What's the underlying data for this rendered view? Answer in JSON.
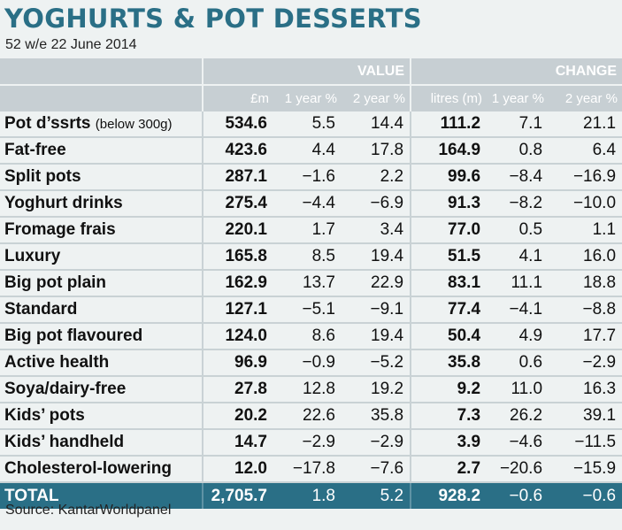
{
  "title": "YOGHURTS & POT DESSERTS",
  "subtitle": "52 w/e 22 June 2014",
  "source": "Source: KantarWorldpanel",
  "colors": {
    "accent": "#2a6f86",
    "header": "#c7cfd3",
    "background": "#eef2f2"
  },
  "chart_data": {
    "type": "table",
    "group_headers": [
      "VALUE",
      "CHANGE"
    ],
    "columns": [
      "£m",
      "1 year %",
      "2 year %",
      "litres (m)",
      "1 year %",
      "2 year %"
    ],
    "rows": [
      {
        "label": "Pot d’ssrts",
        "note": "(below 300g)",
        "values": [
          "534.6",
          "5.5",
          "14.4",
          "111.2",
          "7.1",
          "21.1"
        ]
      },
      {
        "label": "Fat-free",
        "note": "",
        "values": [
          "423.6",
          "4.4",
          "17.8",
          "164.9",
          "0.8",
          "6.4"
        ]
      },
      {
        "label": "Split pots",
        "note": "",
        "values": [
          "287.1",
          "−1.6",
          "2.2",
          "99.6",
          "−8.4",
          "−16.9"
        ]
      },
      {
        "label": "Yoghurt drinks",
        "note": "",
        "values": [
          "275.4",
          "−4.4",
          "−6.9",
          "91.3",
          "−8.2",
          "−10.0"
        ]
      },
      {
        "label": "Fromage frais",
        "note": "",
        "values": [
          "220.1",
          "1.7",
          "3.4",
          "77.0",
          "0.5",
          "1.1"
        ]
      },
      {
        "label": "Luxury",
        "note": "",
        "values": [
          "165.8",
          "8.5",
          "19.4",
          "51.5",
          "4.1",
          "16.0"
        ]
      },
      {
        "label": "Big pot plain",
        "note": "",
        "values": [
          "162.9",
          "13.7",
          "22.9",
          "83.1",
          "11.1",
          "18.8"
        ]
      },
      {
        "label": "Standard",
        "note": "",
        "values": [
          "127.1",
          "−5.1",
          "−9.1",
          "77.4",
          "−4.1",
          "−8.8"
        ]
      },
      {
        "label": "Big pot flavoured",
        "note": "",
        "values": [
          "124.0",
          "8.6",
          "19.4",
          "50.4",
          "4.9",
          "17.7"
        ]
      },
      {
        "label": "Active health",
        "note": "",
        "values": [
          "96.9",
          "−0.9",
          "−5.2",
          "35.8",
          "0.6",
          "−2.9"
        ]
      },
      {
        "label": "Soya/dairy-free",
        "note": "",
        "values": [
          "27.8",
          "12.8",
          "19.2",
          "9.2",
          "11.0",
          "16.3"
        ]
      },
      {
        "label": "Kids’ pots",
        "note": "",
        "values": [
          "20.2",
          "22.6",
          "35.8",
          "7.3",
          "26.2",
          "39.1"
        ]
      },
      {
        "label": "Kids’ handheld",
        "note": "",
        "values": [
          "14.7",
          "−2.9",
          "−2.9",
          "3.9",
          "−4.6",
          "−11.5"
        ]
      },
      {
        "label": "Cholesterol-lowering",
        "note": "",
        "values": [
          "12.0",
          "−17.8",
          "−7.6",
          "2.7",
          "−20.6",
          "−15.9"
        ]
      }
    ],
    "total": {
      "label": "TOTAL",
      "values": [
        "2,705.7",
        "1.8",
        "5.2",
        "928.2",
        "−0.6",
        "−0.6"
      ]
    }
  }
}
